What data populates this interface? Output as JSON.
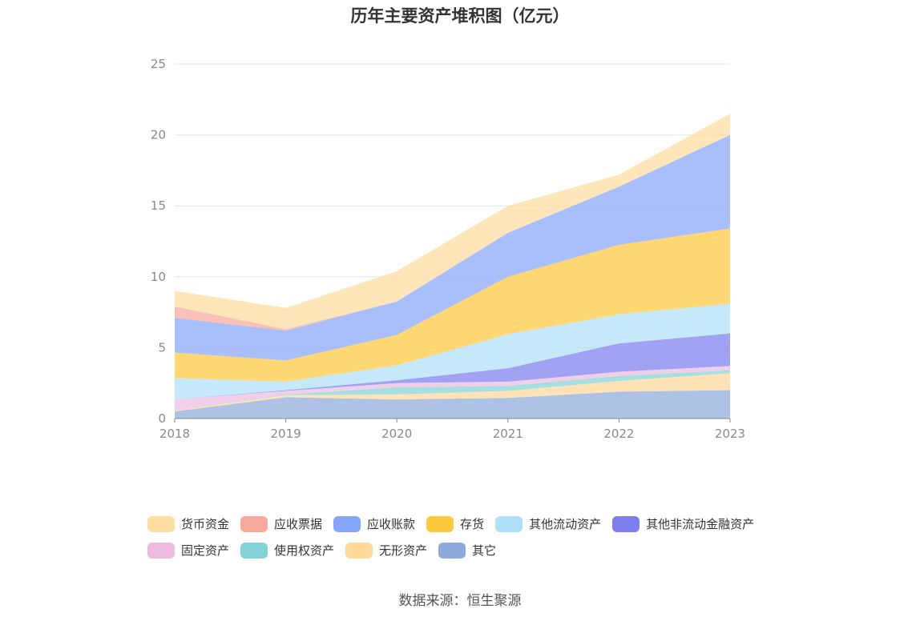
{
  "title": "历年主要资产堆积图（亿元）",
  "source": "数据来源：恒生聚源",
  "chart_data": {
    "type": "area",
    "stacked": true,
    "x": [
      "2018",
      "2019",
      "2020",
      "2021",
      "2022",
      "2023"
    ],
    "ylim": [
      0,
      25
    ],
    "yticks": [
      "0",
      "5",
      "10",
      "15",
      "20",
      "25"
    ],
    "grid": true,
    "legend_position": "bottom",
    "series": [
      {
        "name": "其它",
        "color": "#8eaadb",
        "values": [
          0.5,
          1.5,
          1.35,
          1.45,
          1.9,
          2.0
        ]
      },
      {
        "name": "无形资产",
        "color": "#ffd89a",
        "values": [
          0.05,
          0.15,
          0.35,
          0.5,
          0.75,
          1.2
        ]
      },
      {
        "name": "使用权资产",
        "color": "#83d3d6",
        "values": [
          0.0,
          0.05,
          0.5,
          0.35,
          0.35,
          0.2
        ]
      },
      {
        "name": "固定资产",
        "color": "#ecbcdf",
        "values": [
          0.8,
          0.25,
          0.3,
          0.3,
          0.3,
          0.3
        ]
      },
      {
        "name": "其他非流动金融资产",
        "color": "#7e7ef0",
        "values": [
          0.0,
          0.05,
          0.2,
          0.95,
          2.0,
          2.3
        ]
      },
      {
        "name": "其他流动资产",
        "color": "#aee0fa",
        "values": [
          1.5,
          0.6,
          1.05,
          2.4,
          2.05,
          2.1
        ]
      },
      {
        "name": "存货",
        "color": "#ffc93e",
        "values": [
          1.8,
          1.5,
          2.15,
          4.05,
          4.9,
          5.3
        ]
      },
      {
        "name": "应收账款",
        "color": "#86a6fb",
        "values": [
          2.45,
          2.1,
          2.35,
          3.1,
          4.1,
          6.6
        ]
      },
      {
        "name": "应收票据",
        "color": "#f9a99b",
        "values": [
          0.8,
          0.1,
          0.0,
          0.0,
          0.0,
          0.0
        ]
      },
      {
        "name": "货币资金",
        "color": "#ffdda0",
        "values": [
          1.1,
          1.5,
          2.15,
          1.9,
          0.85,
          1.5
        ]
      }
    ]
  },
  "legend_rows": [
    [
      {
        "label": "货币资金",
        "color": "#ffdda0"
      },
      {
        "label": "应收票据",
        "color": "#f9a99b"
      },
      {
        "label": "应收账款",
        "color": "#86a6fb"
      },
      {
        "label": "存货",
        "color": "#ffc93e"
      },
      {
        "label": "其他流动资产",
        "color": "#aee0fa"
      },
      {
        "label": "其他非流动金融资产",
        "color": "#7e7ef0"
      }
    ],
    [
      {
        "label": "固定资产",
        "color": "#ecbcdf"
      },
      {
        "label": "使用权资产",
        "color": "#83d3d6"
      },
      {
        "label": "无形资产",
        "color": "#ffd89a"
      },
      {
        "label": "其它",
        "color": "#8eaadb"
      }
    ]
  ]
}
